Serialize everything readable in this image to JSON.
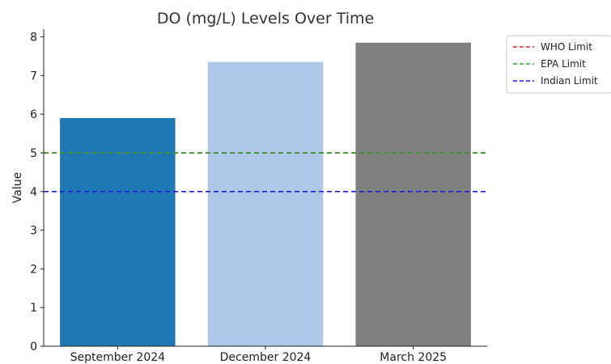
{
  "chart_data": {
    "type": "bar",
    "title": "DO (mg/L) Levels Over Time",
    "xlabel": "",
    "ylabel": "Value",
    "categories": [
      "September 2024",
      "December 2024",
      "March 2025"
    ],
    "values": [
      5.9,
      7.35,
      7.85
    ],
    "bar_colors": [
      "#1f77b4",
      "#aec7e8",
      "#7f7f7f"
    ],
    "ylim": [
      0,
      8.2
    ],
    "yticks": [
      0,
      1,
      2,
      3,
      4,
      5,
      6,
      7,
      8
    ],
    "grid": false,
    "reference_lines": [
      {
        "name": "WHO Limit",
        "value": 5,
        "color": "#d62728",
        "style": "dashed"
      },
      {
        "name": "EPA Limit",
        "value": 5,
        "color": "#2ca02c",
        "style": "dashed"
      },
      {
        "name": "Indian Limit",
        "value": 4,
        "color": "#1f1fd6",
        "style": "dashed"
      }
    ],
    "legend": {
      "position": "outside-top-right",
      "entries": [
        "WHO Limit",
        "EPA Limit",
        "Indian Limit"
      ]
    }
  }
}
